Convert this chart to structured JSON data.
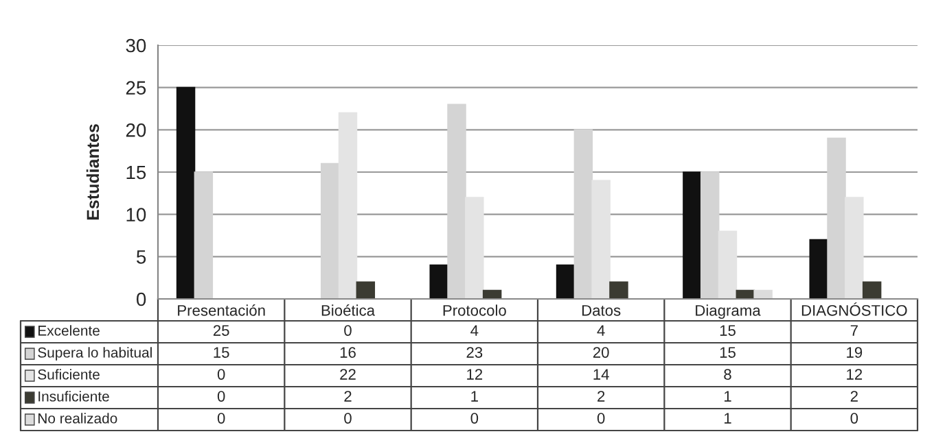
{
  "chart_data": {
    "type": "bar",
    "ylabel": "Estudiantes",
    "categories": [
      "Presentación",
      "Bioética",
      "Protocolo",
      "Datos",
      "Diagrama",
      "DIAGNÓSTICO"
    ],
    "series": [
      {
        "name": "Excelente",
        "color": "#111111",
        "values": [
          25,
          0,
          4,
          4,
          15,
          7
        ]
      },
      {
        "name": "Supera lo habitual",
        "color": "#d4d4d4",
        "values": [
          15,
          16,
          23,
          20,
          15,
          19
        ]
      },
      {
        "name": "Suficiente",
        "color": "#e4e4e4",
        "values": [
          0,
          22,
          12,
          14,
          8,
          12
        ]
      },
      {
        "name": "Insuficiente",
        "color": "#3b3b32",
        "values": [
          0,
          2,
          1,
          2,
          1,
          2
        ]
      },
      {
        "name": "No realizado",
        "color": "#dcdcdc",
        "values": [
          0,
          0,
          0,
          0,
          1,
          0
        ]
      }
    ],
    "ylim": [
      0,
      30
    ],
    "yticks": [
      0,
      5,
      10,
      15,
      20,
      25,
      30
    ],
    "grid": "y",
    "data_labels": true,
    "legend": "bottom"
  }
}
